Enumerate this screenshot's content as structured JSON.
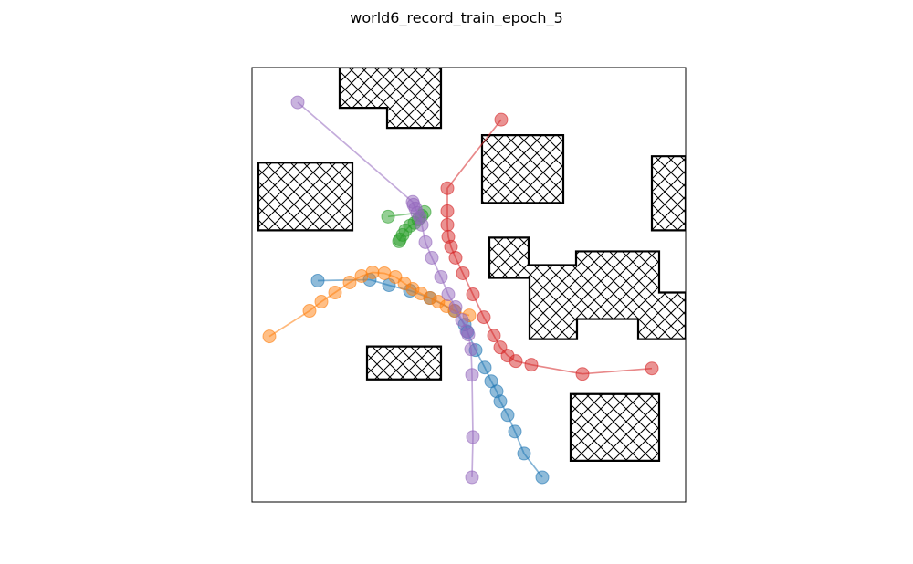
{
  "chart_data": {
    "type": "scatter",
    "title": "world6_record_train_epoch_5",
    "xlabel": "",
    "ylabel": "",
    "xlim": [
      0,
      475
    ],
    "ylim": [
      0,
      475
    ],
    "y_axis_inverted": true,
    "grid": false,
    "legend": "none",
    "axis_ticks": false,
    "obstacles": [
      {
        "outline": [
          [
            96,
            0
          ],
          [
            207,
            0
          ],
          [
            207,
            66
          ],
          [
            148,
            66
          ],
          [
            148,
            44
          ],
          [
            96,
            44
          ]
        ]
      },
      {
        "outline": [
          [
            252,
            74
          ],
          [
            341,
            74
          ],
          [
            341,
            148
          ],
          [
            252,
            148
          ]
        ]
      },
      {
        "outline": [
          [
            7,
            104
          ],
          [
            110,
            104
          ],
          [
            110,
            178
          ],
          [
            7,
            178
          ]
        ]
      },
      {
        "outline": [
          [
            438,
            97
          ],
          [
            475,
            97
          ],
          [
            475,
            178
          ],
          [
            438,
            178
          ]
        ]
      },
      {
        "outline": [
          [
            260,
            186
          ],
          [
            303,
            186
          ],
          [
            303,
            216
          ],
          [
            355,
            216
          ],
          [
            355,
            201
          ],
          [
            446,
            201
          ],
          [
            446,
            246
          ],
          [
            475,
            246
          ],
          [
            475,
            297
          ],
          [
            423,
            297
          ],
          [
            423,
            275
          ],
          [
            356,
            275
          ],
          [
            356,
            297
          ],
          [
            304,
            297
          ],
          [
            304,
            230
          ],
          [
            260,
            230
          ]
        ]
      },
      {
        "outline": [
          [
            126,
            305
          ],
          [
            207,
            305
          ],
          [
            207,
            341
          ],
          [
            126,
            341
          ]
        ]
      },
      {
        "outline": [
          [
            349,
            357
          ],
          [
            446,
            357
          ],
          [
            446,
            430
          ],
          [
            349,
            430
          ]
        ]
      }
    ],
    "series": [
      {
        "color": "#1f77b4",
        "points": [
          [
            72,
            233
          ],
          [
            129,
            232
          ],
          [
            150,
            238
          ],
          [
            173,
            244
          ],
          [
            195,
            252
          ],
          [
            222,
            266
          ],
          [
            233,
            281
          ],
          [
            236,
            289
          ],
          [
            245,
            309
          ],
          [
            255,
            328
          ],
          [
            262,
            343
          ],
          [
            268,
            354
          ],
          [
            272,
            365
          ],
          [
            280,
            380
          ],
          [
            288,
            398
          ],
          [
            298,
            422
          ],
          [
            318,
            448
          ]
        ]
      },
      {
        "color": "#ff7f0e",
        "points": [
          [
            19,
            294
          ],
          [
            63,
            266
          ],
          [
            76,
            256
          ],
          [
            91,
            246
          ],
          [
            107,
            235
          ],
          [
            120,
            228
          ],
          [
            132,
            224
          ],
          [
            145,
            225
          ],
          [
            157,
            229
          ],
          [
            167,
            236
          ],
          [
            176,
            242
          ],
          [
            185,
            247
          ],
          [
            195,
            252
          ],
          [
            204,
            256
          ],
          [
            213,
            261
          ],
          [
            222,
            266
          ],
          [
            238,
            271
          ]
        ]
      },
      {
        "color": "#2ca02c",
        "points": [
          [
            149,
            163
          ],
          [
            189,
            158
          ],
          [
            186,
            162
          ],
          [
            182,
            166
          ],
          [
            178,
            170
          ],
          [
            173,
            173
          ],
          [
            168,
            178
          ],
          [
            165,
            183
          ],
          [
            162,
            188
          ],
          [
            161,
            190
          ]
        ]
      },
      {
        "color": "#d62728",
        "points": [
          [
            273,
            57
          ],
          [
            214,
            132
          ],
          [
            214,
            157
          ],
          [
            214,
            172
          ],
          [
            215,
            185
          ],
          [
            218,
            196
          ],
          [
            223,
            208
          ],
          [
            231,
            225
          ],
          [
            242,
            248
          ],
          [
            254,
            273
          ],
          [
            265,
            293
          ],
          [
            272,
            306
          ],
          [
            280,
            315
          ],
          [
            289,
            321
          ],
          [
            306,
            325
          ],
          [
            362,
            335
          ],
          [
            438,
            329
          ]
        ]
      },
      {
        "color": "#9467bd",
        "points": [
          [
            50,
            38
          ],
          [
            176,
            147
          ],
          [
            177,
            150
          ],
          [
            179,
            154
          ],
          [
            181,
            159
          ],
          [
            184,
            164
          ],
          [
            186,
            172
          ],
          [
            190,
            191
          ],
          [
            197,
            208
          ],
          [
            207,
            229
          ],
          [
            215,
            248
          ],
          [
            223,
            262
          ],
          [
            230,
            276
          ],
          [
            235,
            288
          ],
          [
            237,
            292
          ],
          [
            240,
            308
          ],
          [
            241,
            336
          ],
          [
            242,
            404
          ],
          [
            241,
            448
          ]
        ]
      }
    ]
  }
}
